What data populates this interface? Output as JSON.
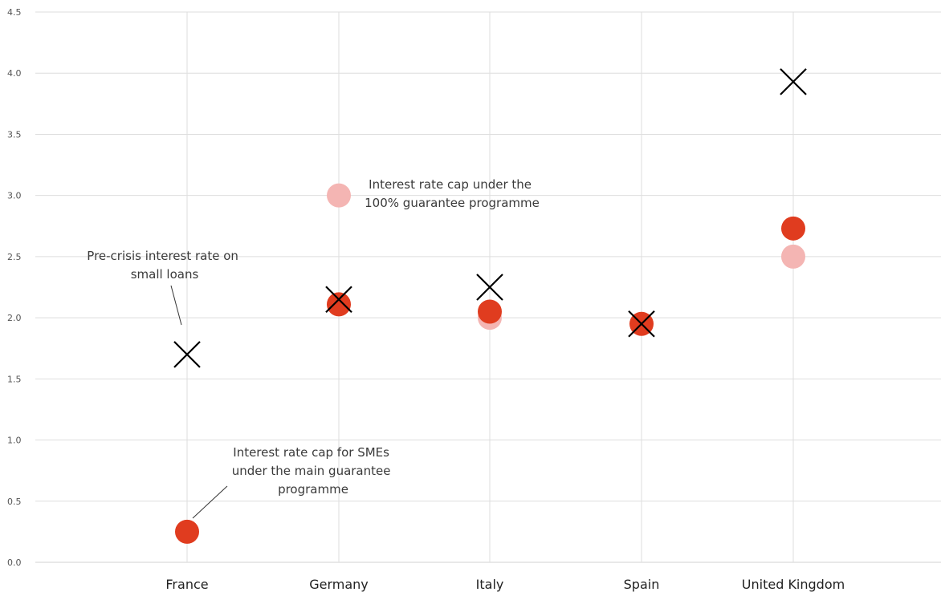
{
  "chart_data": {
    "type": "scatter",
    "categories": [
      "France",
      "Germany",
      "Italy",
      "Spain",
      "United Kingdom"
    ],
    "ylim": [
      0,
      4.5
    ],
    "yticks": [
      "0.0",
      "0.5",
      "1.0",
      "1.5",
      "2.0",
      "2.5",
      "3.0",
      "3.5",
      "4.0",
      "4.5"
    ],
    "grid": true,
    "series": [
      {
        "key": "main_cap",
        "marker": "circle",
        "color": "#e03c1f",
        "values": [
          0.25,
          2.11,
          2.05,
          1.95,
          2.73
        ]
      },
      {
        "key": "full_cap",
        "marker": "circle",
        "color": "#f4b5b3",
        "values": [
          null,
          3.0,
          2.0,
          null,
          2.5
        ]
      },
      {
        "key": "pre_crisis",
        "marker": "x",
        "color": "#000000",
        "values": [
          1.7,
          2.15,
          2.25,
          1.95,
          3.93
        ]
      }
    ],
    "annotations": [
      {
        "series": "pre_crisis",
        "lines": [
          "Pre-crisis interest rate on",
          "small loans"
        ]
      },
      {
        "series": "full_cap",
        "lines": [
          "Interest rate cap under the",
          "100% guarantee programme"
        ]
      },
      {
        "series": "main_cap",
        "lines": [
          "Interest rate cap for SMEs",
          "under the main guarantee",
          "programme"
        ]
      }
    ]
  }
}
